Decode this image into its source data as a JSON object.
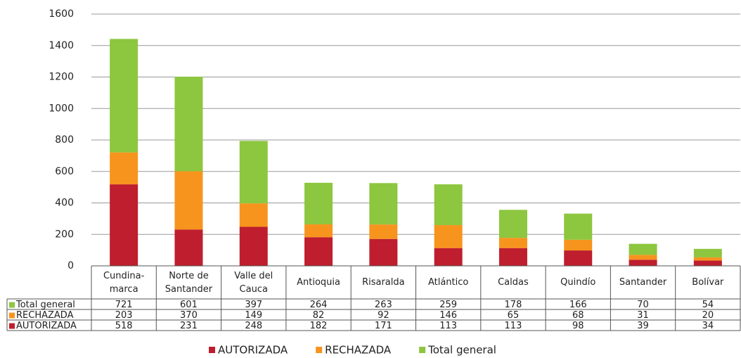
{
  "chart_data": {
    "type": "stacked_bar",
    "categories": [
      "Cundina-marca",
      "Norte de Santander",
      "Valle del Cauca",
      "Antioquia",
      "Risaralda",
      "Atlántico",
      "Caldas",
      "Quindío",
      "Santander",
      "Bolívar"
    ],
    "series": [
      {
        "name": "AUTORIZADA",
        "color": "#be1e2d",
        "values": [
          518,
          231,
          248,
          182,
          171,
          113,
          113,
          98,
          39,
          34
        ]
      },
      {
        "name": "RECHAZADA",
        "color": "#f7941d",
        "values": [
          203,
          370,
          149,
          82,
          92,
          146,
          65,
          68,
          31,
          20
        ]
      },
      {
        "name": "Total general",
        "color": "#8dc63f",
        "values": [
          721,
          601,
          397,
          264,
          263,
          259,
          178,
          166,
          70,
          54
        ]
      }
    ],
    "ylim": [
      0,
      1600
    ],
    "yticks": [
      0,
      200,
      400,
      600,
      800,
      1000,
      1200,
      1400,
      1600
    ],
    "grid": true,
    "legend": "bottom"
  }
}
